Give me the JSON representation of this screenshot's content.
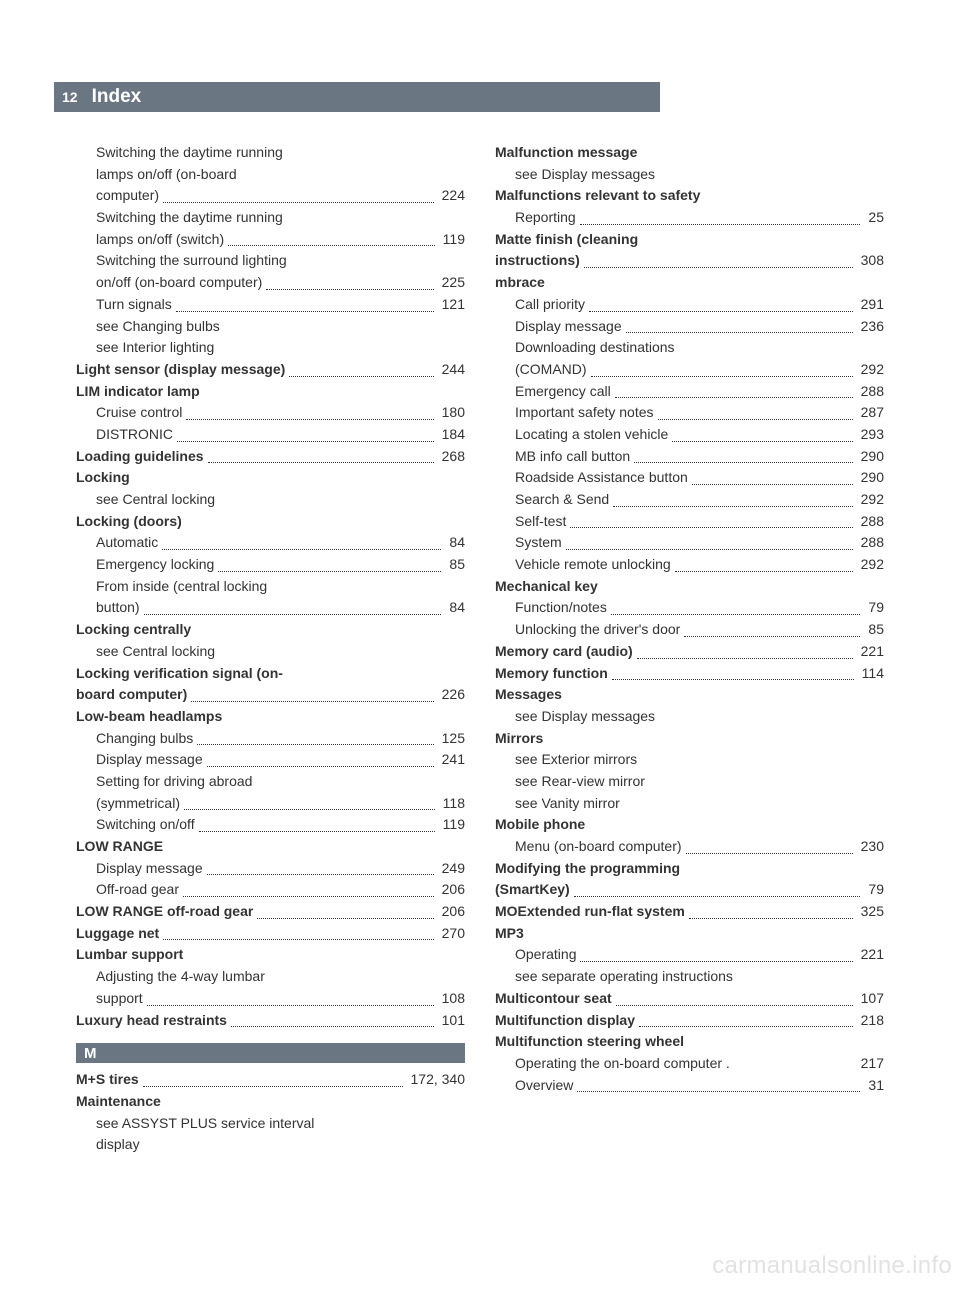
{
  "page_number": "12",
  "header_title": "Index",
  "section_letter": "M",
  "watermark": "carmanualsonline.info",
  "colors": {
    "header_bg": "#6b7683",
    "header_text": "#ffffff",
    "body_text": "#333333",
    "watermark": "#e2e2e2",
    "background": "#ffffff"
  },
  "typography": {
    "body_fontsize": 14,
    "header_title_fontsize": 19,
    "line_height": 1.55
  },
  "left": [
    {
      "t": "ml",
      "sub": true,
      "text": "Switching the daytime running"
    },
    {
      "t": "ml",
      "sub": true,
      "text": "lamps on/off (on-board"
    },
    {
      "t": "e",
      "sub": true,
      "label": "computer)",
      "pg": "224"
    },
    {
      "t": "ml",
      "sub": true,
      "text": "Switching the daytime running"
    },
    {
      "t": "e",
      "sub": true,
      "label": "lamps on/off (switch)",
      "pg": "119"
    },
    {
      "t": "ml",
      "sub": true,
      "text": "Switching the surround lighting"
    },
    {
      "t": "e",
      "sub": true,
      "label": "on/off (on-board computer)",
      "pg": "225"
    },
    {
      "t": "e",
      "sub": true,
      "label": "Turn signals",
      "pg": "121"
    },
    {
      "t": "ml",
      "sub": true,
      "text": "see Changing bulbs"
    },
    {
      "t": "ml",
      "sub": true,
      "text": "see Interior lighting"
    },
    {
      "t": "e",
      "bold": true,
      "label": "Light sensor (display message)",
      "pg": "244"
    },
    {
      "t": "ml",
      "bold": true,
      "text": "LIM indicator lamp"
    },
    {
      "t": "e",
      "sub": true,
      "label": "Cruise control",
      "pg": "180"
    },
    {
      "t": "e",
      "sub": true,
      "label": "DISTRONIC",
      "pg": "184"
    },
    {
      "t": "e",
      "bold": true,
      "label": "Loading guidelines",
      "pg": "268"
    },
    {
      "t": "ml",
      "bold": true,
      "text": "Locking"
    },
    {
      "t": "ml",
      "sub": true,
      "text": "see Central locking"
    },
    {
      "t": "ml",
      "bold": true,
      "text": "Locking (doors)"
    },
    {
      "t": "e",
      "sub": true,
      "label": "Automatic",
      "pg": "84"
    },
    {
      "t": "e",
      "sub": true,
      "label": "Emergency locking",
      "pg": "85"
    },
    {
      "t": "ml",
      "sub": true,
      "text": "From inside (central locking"
    },
    {
      "t": "e",
      "sub": true,
      "label": "button)",
      "pg": "84"
    },
    {
      "t": "ml",
      "bold": true,
      "text": "Locking centrally"
    },
    {
      "t": "ml",
      "sub": true,
      "text": "see Central locking"
    },
    {
      "t": "ml",
      "bold": true,
      "text": "Locking verification signal (on-"
    },
    {
      "t": "e",
      "bold": true,
      "label": "board computer)",
      "pg": "226"
    },
    {
      "t": "ml",
      "bold": true,
      "text": "Low-beam headlamps"
    },
    {
      "t": "e",
      "sub": true,
      "label": "Changing bulbs",
      "pg": "125"
    },
    {
      "t": "e",
      "sub": true,
      "label": "Display message",
      "pg": "241"
    },
    {
      "t": "ml",
      "sub": true,
      "text": "Setting for driving abroad"
    },
    {
      "t": "e",
      "sub": true,
      "label": "(symmetrical)",
      "pg": "118"
    },
    {
      "t": "e",
      "sub": true,
      "label": "Switching on/off",
      "pg": "119"
    },
    {
      "t": "ml",
      "bold": true,
      "text": "LOW RANGE"
    },
    {
      "t": "e",
      "sub": true,
      "label": "Display message",
      "pg": "249"
    },
    {
      "t": "e",
      "sub": true,
      "label": "Off-road gear",
      "pg": "206"
    },
    {
      "t": "e",
      "bold": true,
      "label": "LOW RANGE off-road gear",
      "pg": "206"
    },
    {
      "t": "e",
      "bold": true,
      "label": "Luggage net",
      "pg": "270"
    },
    {
      "t": "ml",
      "bold": true,
      "text": "Lumbar support"
    },
    {
      "t": "ml",
      "sub": true,
      "text": "Adjusting the 4-way lumbar"
    },
    {
      "t": "e",
      "sub": true,
      "label": "support",
      "pg": "108"
    },
    {
      "t": "e",
      "bold": true,
      "label": "Luxury head restraints",
      "pg": "101"
    },
    {
      "t": "letter"
    },
    {
      "t": "e",
      "bold": true,
      "label": "M+S tires",
      "pg": "172, 340"
    },
    {
      "t": "ml",
      "bold": true,
      "text": "Maintenance"
    },
    {
      "t": "ml",
      "sub": true,
      "text": "see ASSYST PLUS service interval"
    },
    {
      "t": "ml",
      "sub": true,
      "text": "display"
    }
  ],
  "right": [
    {
      "t": "ml",
      "bold": true,
      "text": "Malfunction message"
    },
    {
      "t": "ml",
      "sub": true,
      "text": "see Display messages"
    },
    {
      "t": "ml",
      "bold": true,
      "text": "Malfunctions relevant to safety"
    },
    {
      "t": "e",
      "sub": true,
      "label": "Reporting",
      "pg": "25"
    },
    {
      "t": "ml",
      "bold": true,
      "text": "Matte finish (cleaning"
    },
    {
      "t": "e",
      "bold": true,
      "label": "instructions)",
      "pg": "308"
    },
    {
      "t": "ml",
      "bold": true,
      "text": "mbrace"
    },
    {
      "t": "e",
      "sub": true,
      "label": "Call priority",
      "pg": "291"
    },
    {
      "t": "e",
      "sub": true,
      "label": "Display message",
      "pg": "236"
    },
    {
      "t": "ml",
      "sub": true,
      "text": "Downloading destinations"
    },
    {
      "t": "e",
      "sub": true,
      "label": "(COMAND)",
      "pg": "292"
    },
    {
      "t": "e",
      "sub": true,
      "label": "Emergency call",
      "pg": "288"
    },
    {
      "t": "e",
      "sub": true,
      "label": "Important safety notes",
      "pg": "287"
    },
    {
      "t": "e",
      "sub": true,
      "label": "Locating a stolen vehicle",
      "pg": "293"
    },
    {
      "t": "e",
      "sub": true,
      "label": "MB info call button",
      "pg": "290"
    },
    {
      "t": "e",
      "sub": true,
      "label": "Roadside Assistance button",
      "pg": "290"
    },
    {
      "t": "e",
      "sub": true,
      "label": "Search & Send",
      "pg": "292"
    },
    {
      "t": "e",
      "sub": true,
      "label": "Self-test",
      "pg": "288"
    },
    {
      "t": "e",
      "sub": true,
      "label": "System",
      "pg": "288"
    },
    {
      "t": "e",
      "sub": true,
      "label": "Vehicle remote unlocking",
      "pg": "292"
    },
    {
      "t": "ml",
      "bold": true,
      "text": "Mechanical key"
    },
    {
      "t": "e",
      "sub": true,
      "label": "Function/notes",
      "pg": "79"
    },
    {
      "t": "e",
      "sub": true,
      "label": "Unlocking the driver's door",
      "pg": "85"
    },
    {
      "t": "e",
      "bold": true,
      "label": "Memory card (audio)",
      "pg": "221"
    },
    {
      "t": "e",
      "bold": true,
      "label": "Memory function",
      "pg": "114"
    },
    {
      "t": "ml",
      "bold": true,
      "text": "Messages"
    },
    {
      "t": "ml",
      "sub": true,
      "text": "see Display messages"
    },
    {
      "t": "ml",
      "bold": true,
      "text": "Mirrors"
    },
    {
      "t": "ml",
      "sub": true,
      "text": "see Exterior mirrors"
    },
    {
      "t": "ml",
      "sub": true,
      "text": "see Rear-view mirror"
    },
    {
      "t": "ml",
      "sub": true,
      "text": "see Vanity mirror"
    },
    {
      "t": "ml",
      "bold": true,
      "text": "Mobile phone"
    },
    {
      "t": "e",
      "sub": true,
      "label": "Menu (on-board computer)",
      "pg": "230"
    },
    {
      "t": "ml",
      "bold": true,
      "text": "Modifying the programming"
    },
    {
      "t": "e",
      "bold": true,
      "label": "(SmartKey)",
      "pg": "79"
    },
    {
      "t": "e",
      "bold": true,
      "label": "MOExtended run-flat system",
      "pg": "325"
    },
    {
      "t": "ml",
      "bold": true,
      "text": "MP3"
    },
    {
      "t": "e",
      "sub": true,
      "label": "Operating",
      "pg": "221"
    },
    {
      "t": "ml",
      "sub": true,
      "text": "see separate operating instructions"
    },
    {
      "t": "e",
      "bold": true,
      "label": "Multicontour seat",
      "pg": "107"
    },
    {
      "t": "e",
      "bold": true,
      "label": "Multifunction display",
      "pg": "218"
    },
    {
      "t": "ml",
      "bold": true,
      "text": "Multifunction steering wheel"
    },
    {
      "t": "e",
      "sub": true,
      "label": "Operating the on-board computer .",
      "pg": "217",
      "nodots": true
    },
    {
      "t": "e",
      "sub": true,
      "label": "Overview",
      "pg": "31"
    }
  ]
}
